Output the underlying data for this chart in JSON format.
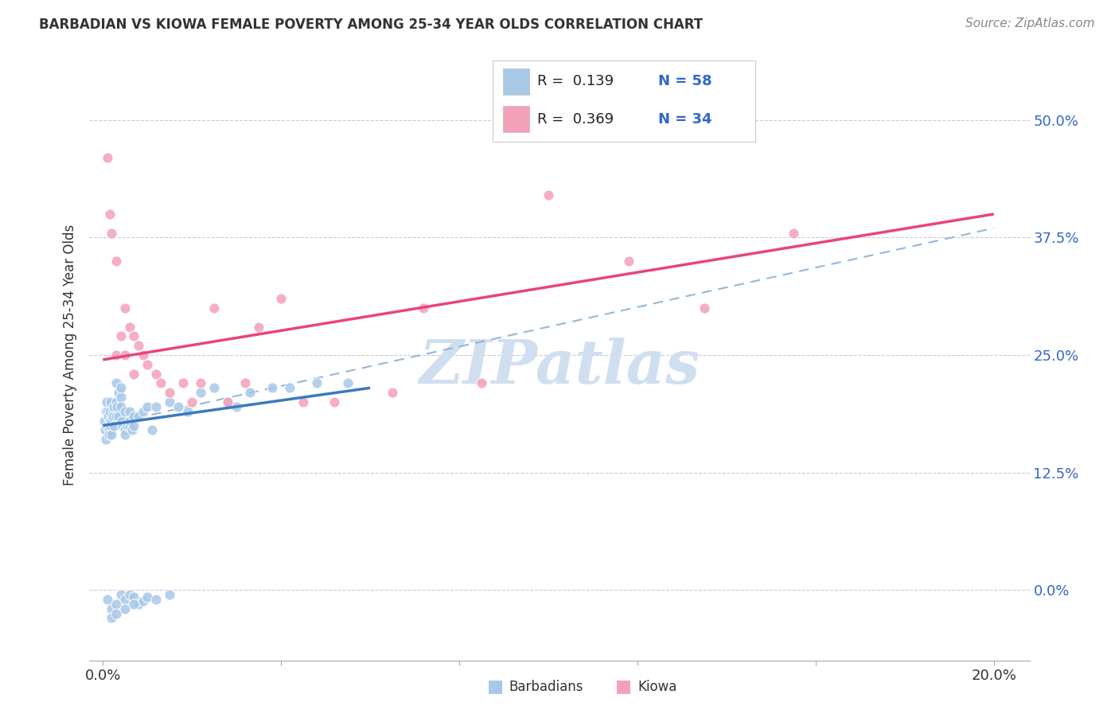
{
  "title_display": "BARBADIAN VS KIOWA FEMALE POVERTY AMONG 25-34 YEAR OLDS CORRELATION CHART",
  "source_text": "Source: ZipAtlas.com",
  "ylabel": "Female Poverty Among 25-34 Year Olds",
  "legend_r1": "R =  0.139",
  "legend_n1": "N = 58",
  "legend_r2": "R =  0.369",
  "legend_n2": "N = 34",
  "blue_dot_color": "#a8c8e8",
  "pink_dot_color": "#f4a0b8",
  "blue_line_color": "#3a7abf",
  "pink_line_color": "#e8457a",
  "dash_line_color": "#8ab0d8",
  "watermark_color": "#d0dff0",
  "ytick_vals": [
    0.0,
    0.125,
    0.25,
    0.375,
    0.5
  ],
  "ytick_labels": [
    "0.0%",
    "12.5%",
    "25.0%",
    "37.5%",
    "50.0%"
  ],
  "xtick_labels": [
    "0.0%",
    "",
    "",
    "",
    "",
    "20.0%"
  ],
  "xlim_lo": -0.003,
  "xlim_hi": 0.208,
  "ylim_lo": -0.075,
  "ylim_hi": 0.575,
  "blue_x": [
    0.0003,
    0.0005,
    0.0006,
    0.0007,
    0.0008,
    0.001,
    0.001,
    0.0012,
    0.0013,
    0.0014,
    0.0015,
    0.0016,
    0.0017,
    0.0018,
    0.002,
    0.002,
    0.0022,
    0.0023,
    0.0025,
    0.0025,
    0.003,
    0.003,
    0.003,
    0.0032,
    0.0035,
    0.0035,
    0.004,
    0.004,
    0.004,
    0.0042,
    0.0045,
    0.005,
    0.005,
    0.005,
    0.0055,
    0.006,
    0.006,
    0.006,
    0.0065,
    0.007,
    0.007,
    0.008,
    0.009,
    0.01,
    0.011,
    0.012,
    0.015,
    0.017,
    0.019,
    0.022,
    0.025,
    0.028,
    0.03,
    0.033,
    0.038,
    0.042,
    0.048,
    0.055
  ],
  "blue_y": [
    0.18,
    0.17,
    0.19,
    0.16,
    0.2,
    0.175,
    0.19,
    0.185,
    0.17,
    0.165,
    0.18,
    0.19,
    0.175,
    0.2,
    0.165,
    0.18,
    0.19,
    0.185,
    0.175,
    0.195,
    0.2,
    0.185,
    0.22,
    0.195,
    0.21,
    0.185,
    0.205,
    0.215,
    0.195,
    0.18,
    0.175,
    0.19,
    0.17,
    0.165,
    0.175,
    0.19,
    0.175,
    0.18,
    0.17,
    0.185,
    0.175,
    0.185,
    0.19,
    0.195,
    0.17,
    0.195,
    0.2,
    0.195,
    0.19,
    0.21,
    0.215,
    0.2,
    0.195,
    0.21,
    0.215,
    0.215,
    0.22,
    0.22
  ],
  "pink_x": [
    0.001,
    0.0015,
    0.002,
    0.003,
    0.003,
    0.004,
    0.005,
    0.005,
    0.006,
    0.007,
    0.007,
    0.008,
    0.009,
    0.01,
    0.012,
    0.013,
    0.015,
    0.018,
    0.02,
    0.022,
    0.025,
    0.028,
    0.032,
    0.035,
    0.04,
    0.045,
    0.052,
    0.065,
    0.072,
    0.085,
    0.1,
    0.118,
    0.135,
    0.155
  ],
  "pink_y": [
    0.46,
    0.4,
    0.38,
    0.35,
    0.25,
    0.27,
    0.3,
    0.25,
    0.28,
    0.27,
    0.23,
    0.26,
    0.25,
    0.24,
    0.23,
    0.22,
    0.21,
    0.22,
    0.2,
    0.22,
    0.3,
    0.2,
    0.22,
    0.28,
    0.31,
    0.2,
    0.2,
    0.21,
    0.3,
    0.22,
    0.42,
    0.35,
    0.3,
    0.38
  ],
  "blue_trend_x0": 0.0,
  "blue_trend_x1": 0.06,
  "blue_trend_y0": 0.175,
  "blue_trend_y1": 0.215,
  "pink_trend_x0": 0.0,
  "pink_trend_x1": 0.2,
  "pink_trend_y0": 0.245,
  "pink_trend_y1": 0.4,
  "dash_trend_x0": 0.0,
  "dash_trend_x1": 0.2,
  "dash_trend_y0": 0.175,
  "dash_trend_y1": 0.385
}
